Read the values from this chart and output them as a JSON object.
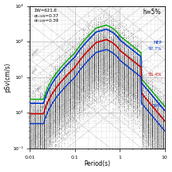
{
  "title_text": "h=5%",
  "annotation_line1": "ΣW=621.6",
  "annotation_line2": "σ₀.₀₂s=0.37",
  "annotation_line3": "σ₀.₁₀s=0.39",
  "xlabel": "Period(s)",
  "ylabel": "pSv(cm/s)",
  "xlim": [
    0.01,
    10
  ],
  "ylim": [
    0.1,
    1000
  ],
  "color_green": "#00aa00",
  "color_blue": "#0033cc",
  "color_red": "#cc0000",
  "color_scatter": "#666666",
  "color_diag": "#999999",
  "color_grid": "#aaaaaa",
  "bg_color": "#ffffff",
  "nep_97_7_color": "#0033cc",
  "nep_81_4_color": "#cc0000",
  "nep_50_color": "#0033cc"
}
